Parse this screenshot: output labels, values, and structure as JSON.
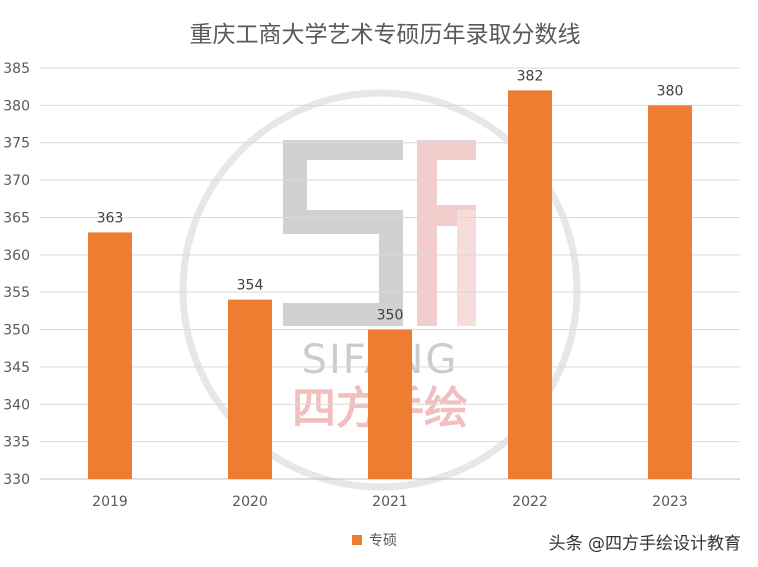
{
  "chart_data": {
    "type": "bar",
    "title": "重庆工商大学艺术专硕历年录取分数线",
    "categories": [
      "2019",
      "2020",
      "2021",
      "2022",
      "2023"
    ],
    "series": [
      {
        "name": "专硕",
        "values": [
          363,
          354,
          350,
          382,
          380
        ]
      }
    ],
    "ylim": [
      330,
      385
    ],
    "ytick_step": 5,
    "grid": true,
    "legend_position": "bottom",
    "bar_color": "#ED7D31",
    "data_labels": true
  },
  "watermark": {
    "brand_latin": "SIFANG",
    "brand_cn": "四方手绘"
  },
  "credit": "头条 @四方手绘设计教育"
}
